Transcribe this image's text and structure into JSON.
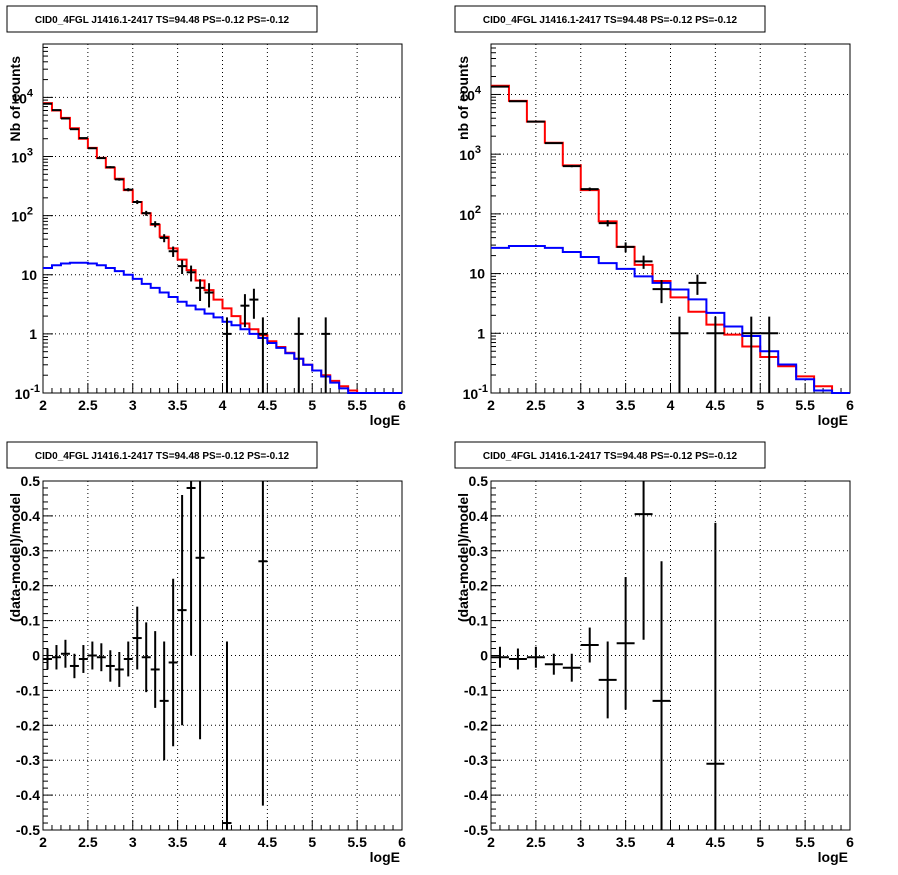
{
  "chart_data": [
    {
      "type": "line",
      "title": "CID0_4FGL J1416.1-2417 TS=94.48 PS=-0.12 PS=-0.12",
      "xlabel": "logE",
      "ylabel": "Nb of counts",
      "xlim": [
        2,
        6
      ],
      "ylim": [
        0.1,
        80000
      ],
      "yscale": "log",
      "grid": true,
      "x_tick_labels": [
        "2",
        "2.5",
        "3",
        "3.5",
        "4",
        "4.5",
        "5",
        "5.5",
        "6"
      ],
      "y_tick_labels": [
        "10^-1",
        "1",
        "10",
        "10^2",
        "10^3",
        "10^4"
      ],
      "series": [
        {
          "color": "#ff0000",
          "style": "step",
          "bin_width": 0.1,
          "x": [
            2.0,
            2.1,
            2.2,
            2.3,
            2.4,
            2.5,
            2.6,
            2.7,
            2.8,
            2.9,
            3.0,
            3.1,
            3.2,
            3.3,
            3.4,
            3.5,
            3.6,
            3.7,
            3.8,
            3.9,
            4.0,
            4.1,
            4.2,
            4.3,
            4.4,
            4.5,
            4.6,
            4.7,
            4.8,
            4.9,
            5.0,
            5.1,
            5.2,
            5.3,
            5.4,
            5.5,
            5.6,
            5.7,
            5.8,
            5.9
          ],
          "values": [
            8000,
            6000,
            4500,
            3000,
            2000,
            1400,
            950,
            650,
            420,
            270,
            170,
            110,
            70,
            44,
            28,
            18,
            12,
            8,
            5.5,
            3.8,
            2.7,
            2,
            1.5,
            1.2,
            0.95,
            0.75,
            0.6,
            0.48,
            0.38,
            0.3,
            0.24,
            0.2,
            0.16,
            0.13,
            0.11,
            0.1,
            0.1,
            0.1,
            0.1,
            0.1
          ]
        },
        {
          "color": "#0000ff",
          "style": "step",
          "bin_width": 0.1,
          "x": [
            2.0,
            2.1,
            2.2,
            2.3,
            2.4,
            2.5,
            2.6,
            2.7,
            2.8,
            2.9,
            3.0,
            3.1,
            3.2,
            3.3,
            3.4,
            3.5,
            3.6,
            3.7,
            3.8,
            3.9,
            4.0,
            4.1,
            4.2,
            4.3,
            4.4,
            4.5,
            4.6,
            4.7,
            4.8,
            4.9,
            5.0,
            5.1,
            5.2,
            5.3,
            5.4,
            5.5,
            5.6,
            5.7,
            5.8,
            5.9
          ],
          "values": [
            13,
            14.5,
            15.5,
            16,
            16,
            15.5,
            14.5,
            13,
            11.5,
            10,
            8.5,
            7,
            6,
            5,
            4.2,
            3.5,
            3,
            2.6,
            2.2,
            1.9,
            1.6,
            1.4,
            1.2,
            1,
            0.85,
            0.7,
            0.58,
            0.47,
            0.38,
            0.3,
            0.24,
            0.19,
            0.15,
            0.12,
            0.1,
            0.1,
            0.1,
            0.1,
            0.1,
            0.1
          ]
        },
        {
          "color": "#000000",
          "style": "errorbar",
          "bin_width": 0.1,
          "x": [
            2.05,
            2.15,
            2.25,
            2.35,
            2.45,
            2.55,
            2.65,
            2.75,
            2.85,
            2.95,
            3.05,
            3.15,
            3.25,
            3.35,
            3.45,
            3.55,
            3.65,
            3.75,
            3.85,
            4.05,
            4.25,
            4.35,
            4.45,
            4.85,
            5.15
          ],
          "values": [
            7800,
            6100,
            4400,
            2900,
            2050,
            1380,
            940,
            660,
            410,
            275,
            170,
            110,
            72,
            42,
            25,
            14,
            11,
            6,
            5,
            1,
            3,
            3.8,
            1,
            1,
            1
          ],
          "errors": [
            90,
            78,
            66,
            54,
            45,
            37,
            31,
            26,
            20,
            17,
            13,
            10.5,
            8.5,
            6.5,
            5,
            3.7,
            3.3,
            2.4,
            2.2,
            0.9,
            1.7,
            2,
            0.9,
            0.9,
            0.9
          ]
        }
      ]
    },
    {
      "type": "line",
      "title": "CID0_4FGL J1416.1-2417 TS=94.48 PS=-0.12 PS=-0.12",
      "xlabel": "logE",
      "ylabel": "nb of counts",
      "xlim": [
        2,
        6
      ],
      "ylim": [
        0.1,
        70000
      ],
      "yscale": "log",
      "grid": true,
      "x_tick_labels": [
        "2",
        "2.5",
        "3",
        "3.5",
        "4",
        "4.5",
        "5",
        "5.5",
        "6"
      ],
      "y_tick_labels": [
        "10^-1",
        "1",
        "10",
        "10^2",
        "10^3",
        "10^4"
      ],
      "series": [
        {
          "color": "#ff0000",
          "style": "step",
          "bin_width": 0.2,
          "x": [
            2.0,
            2.2,
            2.4,
            2.6,
            2.8,
            3.0,
            3.2,
            3.4,
            3.6,
            3.8,
            4.0,
            4.2,
            4.4,
            4.6,
            4.8,
            5.0,
            5.2,
            5.4,
            5.6,
            5.8
          ],
          "values": [
            14000,
            7800,
            3500,
            1550,
            650,
            250,
            75,
            28,
            14,
            7.5,
            4,
            2.3,
            1.4,
            0.95,
            0.6,
            0.4,
            0.28,
            0.19,
            0.13,
            0.1
          ]
        },
        {
          "color": "#0000ff",
          "style": "step",
          "bin_width": 0.2,
          "x": [
            2.0,
            2.2,
            2.4,
            2.6,
            2.8,
            3.0,
            3.2,
            3.4,
            3.6,
            3.8,
            4.0,
            4.2,
            4.4,
            4.6,
            4.8,
            5.0,
            5.2,
            5.4,
            5.6,
            5.8
          ],
          "values": [
            27,
            29,
            29,
            27,
            23,
            19,
            15,
            12,
            9,
            7,
            5.4,
            3.7,
            2.2,
            1.3,
            0.9,
            0.5,
            0.3,
            0.17,
            0.11,
            0.1
          ]
        },
        {
          "color": "#000000",
          "style": "errorbar",
          "bin_width": 0.2,
          "x": [
            2.1,
            2.3,
            2.5,
            2.7,
            2.9,
            3.1,
            3.3,
            3.5,
            3.7,
            3.9,
            4.1,
            4.3,
            4.5,
            4.9,
            5.1
          ],
          "values": [
            13500,
            7700,
            3500,
            1530,
            630,
            260,
            70,
            28,
            16,
            5.5,
            1,
            7,
            1,
            1,
            1
          ],
          "errors": [
            116,
            88,
            59,
            39,
            25,
            16,
            8.4,
            5.3,
            4,
            2.3,
            0.9,
            2.6,
            0.9,
            0.9,
            0.9
          ]
        }
      ]
    },
    {
      "type": "scatter",
      "title": "CID0_4FGL J1416.1-2417 TS=94.48 PS=-0.12 PS=-0.12",
      "xlabel": "logE",
      "ylabel": "(data-model)/model",
      "xlim": [
        2,
        6
      ],
      "ylim": [
        -0.5,
        0.5
      ],
      "grid": true,
      "x_tick_labels": [
        "2",
        "2.5",
        "3",
        "3.5",
        "4",
        "4.5",
        "5",
        "5.5",
        "6"
      ],
      "y_tick_labels": [
        "-0.5",
        "-0.4",
        "-0.3",
        "-0.2",
        "-0.1",
        "0",
        "0.1",
        "0.2",
        "0.3",
        "0.4",
        "0.5"
      ],
      "series": [
        {
          "color": "#000000",
          "style": "errorbar",
          "bin_width": 0.1,
          "x": [
            2.05,
            2.15,
            2.25,
            2.35,
            2.45,
            2.55,
            2.65,
            2.75,
            2.85,
            2.95,
            3.05,
            3.15,
            3.25,
            3.35,
            3.45,
            3.55,
            3.65,
            3.75,
            4.05,
            4.45
          ],
          "values": [
            -0.01,
            -0.005,
            0.005,
            -0.03,
            -0.01,
            0.0,
            -0.005,
            -0.03,
            -0.04,
            -0.01,
            0.05,
            -0.005,
            -0.04,
            -0.13,
            -0.02,
            0.13,
            0.48,
            0.28,
            -0.48,
            0.27
          ],
          "errors": [
            0.03,
            0.035,
            0.04,
            0.035,
            0.04,
            0.04,
            0.04,
            0.045,
            0.05,
            0.05,
            0.09,
            0.1,
            0.11,
            0.17,
            0.24,
            0.33,
            0.48,
            0.52,
            0.52,
            0.7
          ]
        }
      ]
    },
    {
      "type": "scatter",
      "title": "CID0_4FGL J1416.1-2417 TS=94.48 PS=-0.12 PS=-0.12",
      "xlabel": "logE",
      "ylabel": "(data-model)/model",
      "xlim": [
        2,
        6
      ],
      "ylim": [
        -0.5,
        0.5
      ],
      "grid": true,
      "x_tick_labels": [
        "2",
        "2.5",
        "3",
        "3.5",
        "4",
        "4.5",
        "5",
        "5.5",
        "6"
      ],
      "y_tick_labels": [
        "-0.5",
        "-0.4",
        "-0.3",
        "-0.2",
        "-0.1",
        "0",
        "0.1",
        "0.2",
        "0.3",
        "0.4",
        "0.5"
      ],
      "series": [
        {
          "color": "#000000",
          "style": "errorbar",
          "bin_width": 0.2,
          "x": [
            2.1,
            2.3,
            2.5,
            2.7,
            2.9,
            3.1,
            3.3,
            3.5,
            3.7,
            3.9,
            4.5
          ],
          "values": [
            -0.005,
            -0.01,
            -0.005,
            -0.025,
            -0.035,
            0.03,
            -0.07,
            0.035,
            0.405,
            -0.13,
            -0.31
          ],
          "errors": [
            0.03,
            0.03,
            0.03,
            0.03,
            0.04,
            0.05,
            0.11,
            0.19,
            0.36,
            0.4,
            0.69
          ]
        }
      ]
    }
  ]
}
